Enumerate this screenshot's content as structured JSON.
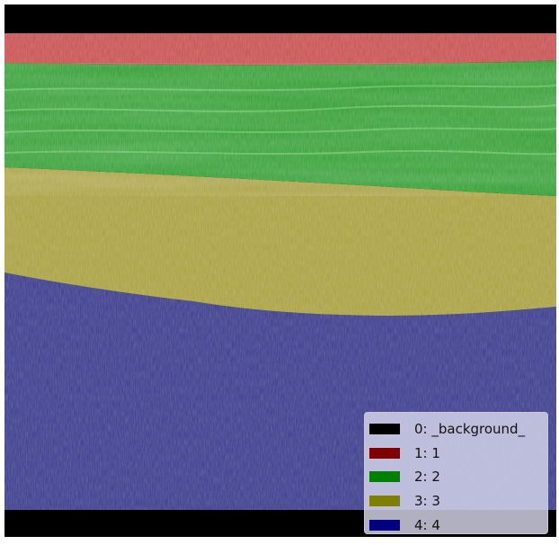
{
  "image": {
    "description_layers": [
      {
        "class_id": 0,
        "color": "#000000"
      },
      {
        "class_id": 1,
        "color": "#c85050"
      },
      {
        "class_id": 2,
        "color": "#2d9b2d"
      },
      {
        "class_id": 3,
        "color": "#a8a040"
      },
      {
        "class_id": 4,
        "color": "#3a3a8c"
      }
    ]
  },
  "legend": {
    "items": [
      {
        "label": "0: _background_",
        "color": "#000000"
      },
      {
        "label": "1: 1",
        "color": "#800000"
      },
      {
        "label": "2: 2",
        "color": "#008000"
      },
      {
        "label": "3: 3",
        "color": "#808000"
      },
      {
        "label": "4: 4",
        "color": "#000080"
      }
    ]
  }
}
